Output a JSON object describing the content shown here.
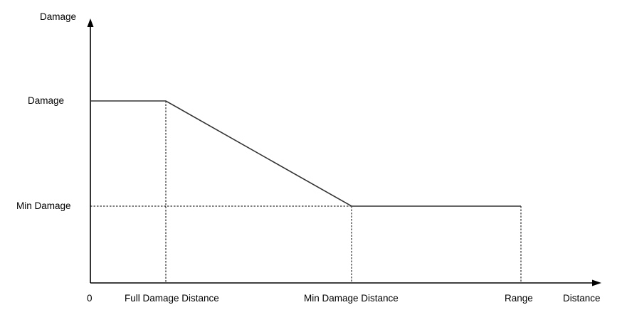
{
  "labels": {
    "y_axis_title": "Damage",
    "y_damage": "Damage",
    "y_min_damage": "Min Damage",
    "x_origin": "0",
    "x_full_damage_distance": "Full Damage Distance",
    "x_min_damage_distance": "Min Damage Distance",
    "x_range": "Range",
    "x_axis_title": "Distance"
  },
  "colors": {
    "axis": "#000000",
    "curve": "#333333",
    "guides": "#000000"
  }
}
